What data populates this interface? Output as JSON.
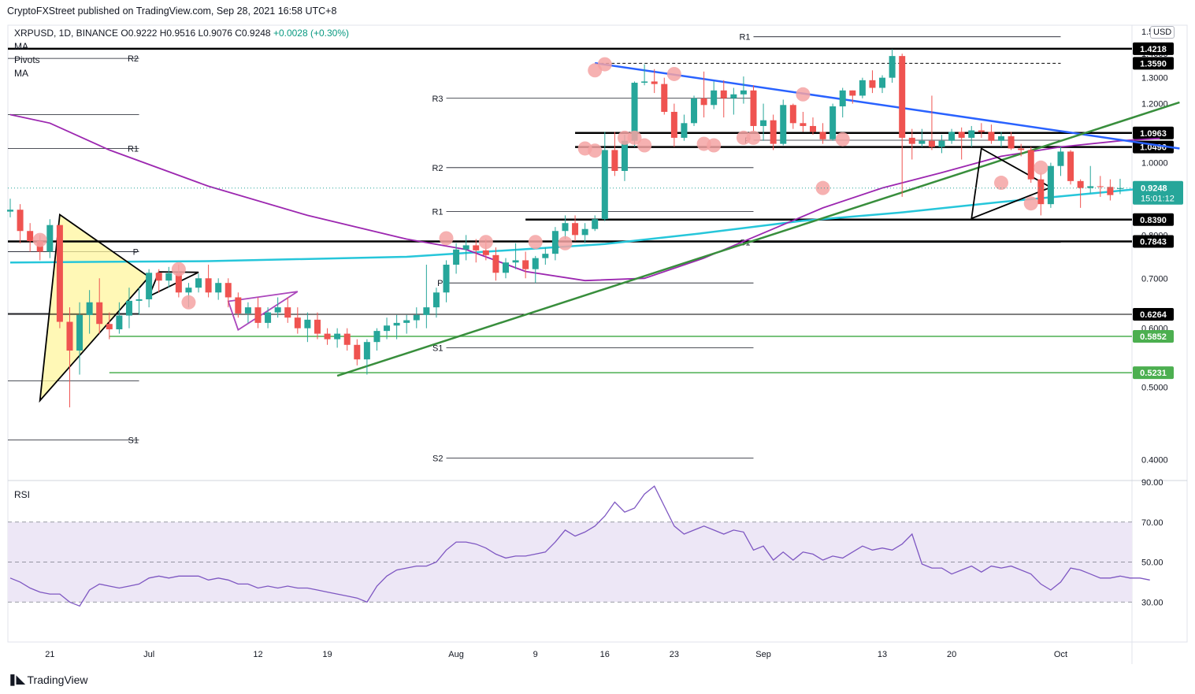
{
  "publisher": "CryptoFXStreet published on TradingView.com, Sep 28, 2021 16:58 UTC+8",
  "symbol": {
    "name": "XRPUSD, 1D, BINANCE",
    "o": "O0.9222",
    "h": "H0.9516",
    "l": "L0.9076",
    "c": "C0.9248",
    "change": "+0.0028 (+0.30%)"
  },
  "indicators": [
    "MA",
    "Pivots",
    "MA"
  ],
  "currency": "USD",
  "footer_brand": "TradingView",
  "colors": {
    "up": "#26a69a",
    "down": "#ef5350",
    "ma_short": "#9c27b0",
    "ma_long": "#26c6da",
    "trend_blue": "#2962ff",
    "trend_green": "#388e3c",
    "support_green": "#4caf50",
    "marker": "#f4a3a3",
    "triangle_fill": "#fff59d",
    "rsi_line": "#7e57c2",
    "rsi_band": "#ede7f6"
  },
  "chart_data": {
    "type": "candlestick",
    "y_scale": "log",
    "ylim": [
      0.375,
      1.525
    ],
    "price_ticks": [
      "1.5000",
      "1.4000",
      "1.3000",
      "1.2000",
      "1.1000",
      "1.0000",
      "0.9000",
      "0.8000",
      "0.7000",
      "0.6000",
      "0.5000",
      "0.4000"
    ],
    "x_ticks": [
      {
        "label": "21",
        "date": "2021-06-21"
      },
      {
        "label": "Jul",
        "date": "2021-07-01"
      },
      {
        "label": "12",
        "date": "2021-07-12"
      },
      {
        "label": "19",
        "date": "2021-07-19"
      },
      {
        "label": "Aug",
        "date": "2021-08-01"
      },
      {
        "label": "9",
        "date": "2021-08-09"
      },
      {
        "label": "16",
        "date": "2021-08-16"
      },
      {
        "label": "23",
        "date": "2021-08-23"
      },
      {
        "label": "Sep",
        "date": "2021-09-01"
      },
      {
        "label": "13",
        "date": "2021-09-13"
      },
      {
        "label": "20",
        "date": "2021-09-20"
      },
      {
        "label": "Oct",
        "date": "2021-10-01"
      }
    ],
    "first_date": "2021-06-17",
    "candles": [
      [
        0.86,
        0.895,
        0.845,
        0.865
      ],
      [
        0.865,
        0.88,
        0.78,
        0.81
      ],
      [
        0.81,
        0.83,
        0.76,
        0.785
      ],
      [
        0.785,
        0.8,
        0.74,
        0.76
      ],
      [
        0.76,
        0.84,
        0.745,
        0.825
      ],
      [
        0.825,
        0.825,
        0.6,
        0.612
      ],
      [
        0.612,
        0.64,
        0.47,
        0.56
      ],
      [
        0.56,
        0.65,
        0.52,
        0.625
      ],
      [
        0.625,
        0.675,
        0.59,
        0.65
      ],
      [
        0.65,
        0.7,
        0.59,
        0.608
      ],
      [
        0.608,
        0.63,
        0.58,
        0.598
      ],
      [
        0.598,
        0.65,
        0.59,
        0.624
      ],
      [
        0.624,
        0.68,
        0.6,
        0.653
      ],
      [
        0.653,
        0.68,
        0.625,
        0.656
      ],
      [
        0.656,
        0.72,
        0.64,
        0.712
      ],
      [
        0.712,
        0.72,
        0.67,
        0.695
      ],
      [
        0.695,
        0.725,
        0.68,
        0.711
      ],
      [
        0.711,
        0.73,
        0.66,
        0.67
      ],
      [
        0.67,
        0.69,
        0.64,
        0.68
      ],
      [
        0.68,
        0.71,
        0.67,
        0.7
      ],
      [
        0.7,
        0.73,
        0.66,
        0.67
      ],
      [
        0.67,
        0.7,
        0.655,
        0.69
      ],
      [
        0.69,
        0.7,
        0.64,
        0.66
      ],
      [
        0.66,
        0.67,
        0.62,
        0.628
      ],
      [
        0.628,
        0.65,
        0.61,
        0.64
      ],
      [
        0.64,
        0.66,
        0.6,
        0.61
      ],
      [
        0.61,
        0.64,
        0.6,
        0.63
      ],
      [
        0.63,
        0.66,
        0.62,
        0.64
      ],
      [
        0.64,
        0.66,
        0.61,
        0.62
      ],
      [
        0.62,
        0.64,
        0.59,
        0.6
      ],
      [
        0.6,
        0.63,
        0.575,
        0.616
      ],
      [
        0.616,
        0.63,
        0.58,
        0.59
      ],
      [
        0.59,
        0.6,
        0.57,
        0.58
      ],
      [
        0.58,
        0.6,
        0.565,
        0.59
      ],
      [
        0.59,
        0.6,
        0.56,
        0.57
      ],
      [
        0.57,
        0.58,
        0.535,
        0.545
      ],
      [
        0.545,
        0.58,
        0.52,
        0.575
      ],
      [
        0.575,
        0.6,
        0.56,
        0.595
      ],
      [
        0.595,
        0.62,
        0.58,
        0.605
      ],
      [
        0.605,
        0.625,
        0.58,
        0.61
      ],
      [
        0.61,
        0.625,
        0.59,
        0.615
      ],
      [
        0.615,
        0.64,
        0.6,
        0.625
      ],
      [
        0.625,
        0.73,
        0.6,
        0.64
      ],
      [
        0.64,
        0.68,
        0.62,
        0.67
      ],
      [
        0.67,
        0.74,
        0.65,
        0.73
      ],
      [
        0.73,
        0.78,
        0.71,
        0.765
      ],
      [
        0.765,
        0.8,
        0.74,
        0.775
      ],
      [
        0.775,
        0.79,
        0.735,
        0.763
      ],
      [
        0.763,
        0.79,
        0.74,
        0.752
      ],
      [
        0.752,
        0.77,
        0.695,
        0.712
      ],
      [
        0.712,
        0.745,
        0.7,
        0.735
      ],
      [
        0.735,
        0.78,
        0.72,
        0.74
      ],
      [
        0.74,
        0.76,
        0.7,
        0.72
      ],
      [
        0.72,
        0.75,
        0.69,
        0.745
      ],
      [
        0.745,
        0.77,
        0.73,
        0.755
      ],
      [
        0.755,
        0.82,
        0.74,
        0.81
      ],
      [
        0.81,
        0.85,
        0.79,
        0.83
      ],
      [
        0.83,
        0.85,
        0.785,
        0.8
      ],
      [
        0.8,
        0.83,
        0.78,
        0.815
      ],
      [
        0.815,
        0.85,
        0.81,
        0.84
      ],
      [
        0.84,
        1.1,
        0.835,
        1.04
      ],
      [
        1.04,
        1.1,
        0.96,
        0.975
      ],
      [
        0.975,
        1.09,
        0.945,
        1.07
      ],
      [
        1.07,
        1.285,
        1.05,
        1.28
      ],
      [
        1.28,
        1.355,
        1.27,
        1.285
      ],
      [
        1.285,
        1.335,
        1.24,
        1.275
      ],
      [
        1.275,
        1.3,
        1.16,
        1.17
      ],
      [
        1.17,
        1.2,
        1.05,
        1.08
      ],
      [
        1.08,
        1.16,
        1.07,
        1.13
      ],
      [
        1.13,
        1.23,
        1.12,
        1.22
      ],
      [
        1.22,
        1.325,
        1.15,
        1.195
      ],
      [
        1.195,
        1.285,
        1.18,
        1.25
      ],
      [
        1.25,
        1.29,
        1.15,
        1.22
      ],
      [
        1.22,
        1.26,
        1.16,
        1.235
      ],
      [
        1.235,
        1.305,
        1.2,
        1.25
      ],
      [
        1.25,
        1.27,
        1.1,
        1.12
      ],
      [
        1.12,
        1.2,
        1.07,
        1.14
      ],
      [
        1.14,
        1.16,
        1.04,
        1.06
      ],
      [
        1.06,
        1.215,
        1.055,
        1.195
      ],
      [
        1.195,
        1.2,
        1.11,
        1.13
      ],
      [
        1.13,
        1.17,
        1.1,
        1.12
      ],
      [
        1.12,
        1.15,
        1.09,
        1.1
      ],
      [
        1.1,
        1.13,
        1.06,
        1.075
      ],
      [
        1.075,
        1.2,
        1.07,
        1.19
      ],
      [
        1.19,
        1.26,
        1.15,
        1.25
      ],
      [
        1.25,
        1.25,
        1.2,
        1.23
      ],
      [
        1.23,
        1.3,
        1.22,
        1.29
      ],
      [
        1.29,
        1.33,
        1.24,
        1.26
      ],
      [
        1.26,
        1.31,
        1.24,
        1.3
      ],
      [
        1.3,
        1.42,
        1.28,
        1.39
      ],
      [
        1.39,
        1.4,
        0.9,
        1.08
      ],
      [
        1.08,
        1.11,
        1.01,
        1.06
      ],
      [
        1.06,
        1.11,
        1.05,
        1.07
      ],
      [
        1.07,
        1.23,
        1.04,
        1.05
      ],
      [
        1.05,
        1.09,
        1.03,
        1.07
      ],
      [
        1.07,
        1.11,
        1.06,
        1.1
      ],
      [
        1.1,
        1.115,
        1.01,
        1.08
      ],
      [
        1.08,
        1.12,
        1.05,
        1.105
      ],
      [
        1.105,
        1.13,
        1.08,
        1.1
      ],
      [
        1.1,
        1.125,
        1.06,
        1.07
      ],
      [
        1.07,
        1.1,
        1.05,
        1.085
      ],
      [
        1.085,
        1.1,
        1.04,
        1.045
      ],
      [
        1.045,
        1.06,
        1.02,
        1.04
      ],
      [
        1.04,
        1.05,
        0.94,
        0.95
      ],
      [
        0.95,
        0.97,
        0.85,
        0.88
      ],
      [
        0.88,
        1.0,
        0.87,
        0.99
      ],
      [
        0.99,
        1.05,
        0.96,
        1.035
      ],
      [
        1.035,
        1.04,
        0.935,
        0.945
      ],
      [
        0.945,
        0.95,
        0.87,
        0.925
      ],
      [
        0.925,
        0.99,
        0.91,
        0.93
      ],
      [
        0.93,
        0.96,
        0.9,
        0.928
      ],
      [
        0.928,
        0.95,
        0.89,
        0.905
      ],
      [
        0.9222,
        0.9516,
        0.9076,
        0.9248
      ]
    ],
    "ma_long_label": "MA",
    "ma_short_label": "MA",
    "ma_long": [
      [
        0,
        0.735
      ],
      [
        20,
        0.738
      ],
      [
        40,
        0.748
      ],
      [
        60,
        0.778
      ],
      [
        70,
        0.805
      ],
      [
        80,
        0.836
      ],
      [
        90,
        0.858
      ],
      [
        100,
        0.886
      ],
      [
        110,
        0.912
      ],
      [
        116,
        0.928
      ]
    ],
    "ma_short": [
      [
        0,
        1.16
      ],
      [
        4,
        1.13
      ],
      [
        10,
        1.04
      ],
      [
        20,
        0.93
      ],
      [
        30,
        0.85
      ],
      [
        40,
        0.79
      ],
      [
        46,
        0.765
      ],
      [
        52,
        0.715
      ],
      [
        58,
        0.695
      ],
      [
        64,
        0.7
      ],
      [
        70,
        0.745
      ],
      [
        76,
        0.805
      ],
      [
        82,
        0.87
      ],
      [
        88,
        0.925
      ],
      [
        94,
        0.97
      ],
      [
        100,
        1.02
      ],
      [
        106,
        1.05
      ],
      [
        112,
        1.07
      ],
      [
        116,
        1.078
      ]
    ],
    "horizontal_levels": [
      {
        "label": "1.4218",
        "value": 1.4218,
        "style": "thick"
      },
      {
        "label": "1.3590",
        "value": 1.359,
        "style": "dashed"
      },
      {
        "label": "1.0963",
        "value": 1.0963,
        "style": "thick"
      },
      {
        "label": "1.0496",
        "value": 1.0496,
        "style": "thick"
      },
      {
        "label": "0.8390",
        "value": 0.839,
        "style": "thick"
      },
      {
        "label": "0.7843",
        "value": 0.7843,
        "style": "thick"
      },
      {
        "label": "0.6264",
        "value": 0.6264,
        "style": "thin"
      },
      {
        "label": "0.5852",
        "value": 0.5852,
        "style": "green"
      },
      {
        "label": "0.5231",
        "value": 0.5231,
        "style": "green"
      }
    ],
    "current_price": {
      "label": "0.9248",
      "countdown": "15:01:12",
      "value": 0.9248
    },
    "pivot_sets": [
      {
        "from": -1,
        "to": 13,
        "levels": [
          {
            "label": "R2",
            "value": 1.38
          },
          {
            "label": "R1",
            "value": 1.045
          },
          {
            "label": "P",
            "value": 0.76
          },
          {
            "label": "S1",
            "value": 0.425
          }
        ]
      },
      {
        "from": -1,
        "to": 13,
        "levels": [
          {
            "label": "",
            "value": 1.16
          },
          {
            "label": "",
            "value": 0.628
          },
          {
            "label": "",
            "value": 0.51
          }
        ]
      },
      {
        "from": 44,
        "to": 75,
        "levels": [
          {
            "label": "R3",
            "value": 1.22
          },
          {
            "label": "R2",
            "value": 0.985
          },
          {
            "label": "R1",
            "value": 0.86
          },
          {
            "label": "P",
            "value": 0.69
          },
          {
            "label": "S1",
            "value": 0.565
          },
          {
            "label": "S2",
            "value": 0.402
          }
        ]
      },
      {
        "from": 75,
        "to": 106,
        "levels": [
          {
            "label": "R1",
            "value": 1.475
          },
          {
            "label": "P",
            "value": 1.072
          },
          {
            "label": "S1",
            "value": 0.782
          }
        ]
      }
    ],
    "trendlines": [
      {
        "color": "blue",
        "points": [
          [
            59,
            1.36
          ],
          [
            118,
            1.045
          ]
        ]
      },
      {
        "color": "green_dark",
        "points": [
          [
            33,
            0.518
          ],
          [
            118,
            1.205
          ]
        ]
      },
      {
        "color": "black",
        "points": [
          [
            5,
            0.852
          ],
          [
            14,
            0.703
          ],
          [
            3,
            0.48
          ]
        ]
      },
      {
        "color": "black",
        "points": [
          [
            14,
            0.662
          ],
          [
            19,
            0.713
          ],
          [
            15,
            0.714
          ]
        ]
      },
      {
        "color": "purple",
        "points": [
          [
            22,
            0.652
          ],
          [
            29,
            0.672
          ],
          [
            23,
            0.597
          ]
        ]
      },
      {
        "color": "black",
        "points": [
          [
            98,
            1.045
          ],
          [
            105,
            0.927
          ],
          [
            97,
            0.842
          ]
        ]
      }
    ],
    "markers": [
      [
        3,
        0.788
      ],
      [
        17,
        0.72
      ],
      [
        18,
        0.65
      ],
      [
        44,
        0.792
      ],
      [
        48,
        0.783
      ],
      [
        53,
        0.783
      ],
      [
        56,
        0.78
      ],
      [
        58,
        1.045
      ],
      [
        59,
        1.33
      ],
      [
        60,
        1.355
      ],
      [
        59,
        1.038
      ],
      [
        62,
        1.08
      ],
      [
        64,
        1.055
      ],
      [
        63,
        1.08
      ],
      [
        67,
        1.315
      ],
      [
        70,
        1.06
      ],
      [
        71,
        1.055
      ],
      [
        74,
        1.08
      ],
      [
        75,
        1.08
      ],
      [
        80,
        1.235
      ],
      [
        82,
        0.925
      ],
      [
        84,
        1.075
      ],
      [
        100,
        0.94
      ],
      [
        104,
        0.985
      ],
      [
        103,
        0.882
      ]
    ],
    "rsi": {
      "label": "RSI",
      "ticks": [
        "90.00",
        "70.00",
        "50.00",
        "30.00"
      ],
      "ylim": [
        10,
        90
      ],
      "band": [
        30,
        70
      ],
      "values": [
        42,
        40,
        37,
        35,
        34,
        34,
        30,
        28,
        36,
        39,
        38,
        37,
        38,
        39,
        42,
        43,
        42,
        43,
        43,
        43,
        41,
        42,
        41,
        39,
        39,
        37,
        38,
        37,
        38,
        37,
        37,
        36,
        35,
        34,
        33,
        32,
        30,
        38,
        43,
        46,
        47,
        48,
        48,
        50,
        56,
        60,
        60,
        59,
        57,
        54,
        52,
        53,
        53,
        54,
        55,
        60,
        66,
        63,
        65,
        68,
        73,
        80,
        75,
        77,
        84,
        88,
        78,
        68,
        64,
        66,
        68,
        66,
        64,
        66,
        65,
        56,
        58,
        51,
        55,
        51,
        55,
        54,
        51,
        53,
        52,
        55,
        58,
        56,
        57,
        56,
        59,
        64,
        49,
        47,
        47,
        44,
        46,
        48,
        45,
        48,
        47,
        48,
        46,
        44,
        39,
        36,
        40,
        47,
        46,
        44,
        42,
        42,
        43,
        42,
        42,
        41
      ]
    }
  }
}
